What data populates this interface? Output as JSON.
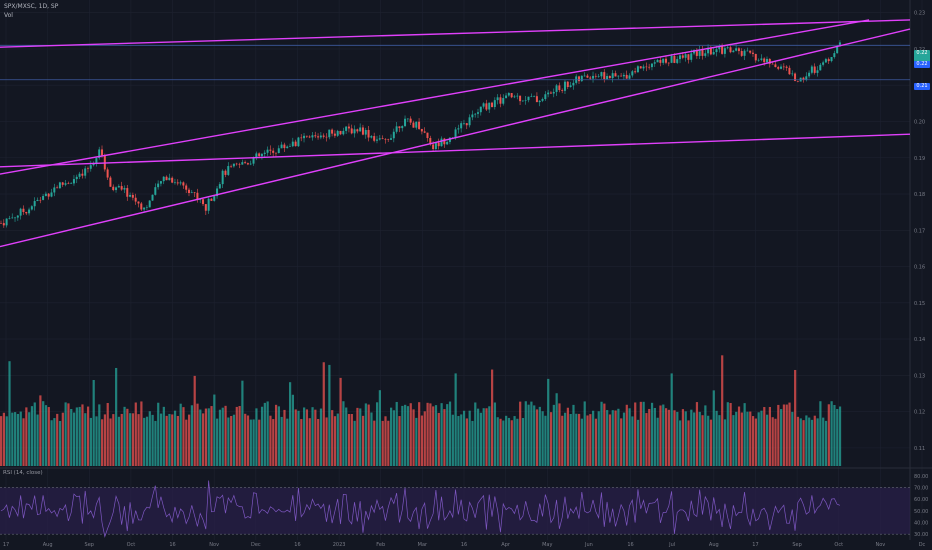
{
  "legend": {
    "symbol": "SPX/MXSC, 1D, SP",
    "volume": "Vol"
  },
  "rsi_label": "RSI (14, close)",
  "colors": {
    "background": "#131722",
    "grid": "#1e2230",
    "up": "#26a69a",
    "down": "#ef5350",
    "trendline": "#e040fb",
    "hline": "#3d5a9e",
    "rsi_line": "#7e57c2",
    "rsi_band": "#2a1f4a"
  },
  "chart_data": {
    "type": "candlestick",
    "price_axis": {
      "labels": [
        "0.23",
        "0.22",
        "0.21",
        "0.20",
        "0.19",
        "0.18",
        "0.17",
        "0.16",
        "0.15",
        "0.14",
        "0.13",
        "0.12",
        "0.11"
      ],
      "range": [
        0.105,
        0.2335
      ]
    },
    "rsi_axis": {
      "labels": [
        "80.00",
        "70.00",
        "60.00",
        "50.00",
        "40.00",
        "30.00"
      ],
      "range": [
        25,
        85
      ],
      "levels": [
        70,
        30
      ]
    },
    "x_axis_labels": [
      "17",
      "Aug",
      "Sep",
      "Oct",
      "16",
      "Nov",
      "Dec",
      "16",
      "2023",
      "Feb",
      "Mar",
      "16",
      "Apr",
      "May",
      "Jun",
      "16",
      "Jul",
      "Aug",
      "17",
      "Sep",
      "Oct",
      "Nov",
      "Dc"
    ],
    "price_tags": {
      "current": "0.22",
      "level_1": "0.22",
      "level_2": "0.21"
    },
    "horizontal_levels": [
      0.221,
      0.2115
    ],
    "trendlines": [
      {
        "x0": 0,
        "y0": 0.2205,
        "x1": 1.0,
        "y1": 0.228
      },
      {
        "x0": 0,
        "y0": 0.1875,
        "x1": 1.0,
        "y1": 0.1965
      },
      {
        "x0": 0,
        "y0": 0.1655,
        "x1": 1.0,
        "y1": 0.2255
      },
      {
        "x0": 0,
        "y0": 0.1855,
        "x1": 0.955,
        "y1": 0.228
      }
    ],
    "price_path": [
      [
        0.0,
        0.172
      ],
      [
        0.03,
        0.176
      ],
      [
        0.06,
        0.182
      ],
      [
        0.09,
        0.185
      ],
      [
        0.11,
        0.192
      ],
      [
        0.118,
        0.183
      ],
      [
        0.14,
        0.18
      ],
      [
        0.158,
        0.176
      ],
      [
        0.18,
        0.185
      ],
      [
        0.205,
        0.182
      ],
      [
        0.225,
        0.176
      ],
      [
        0.245,
        0.186
      ],
      [
        0.28,
        0.19
      ],
      [
        0.32,
        0.194
      ],
      [
        0.36,
        0.197
      ],
      [
        0.395,
        0.198
      ],
      [
        0.42,
        0.194
      ],
      [
        0.44,
        0.2
      ],
      [
        0.46,
        0.199
      ],
      [
        0.475,
        0.193
      ],
      [
        0.5,
        0.197
      ],
      [
        0.53,
        0.204
      ],
      [
        0.56,
        0.207
      ],
      [
        0.59,
        0.206
      ],
      [
        0.62,
        0.21
      ],
      [
        0.65,
        0.213
      ],
      [
        0.68,
        0.212
      ],
      [
        0.71,
        0.216
      ],
      [
        0.74,
        0.217
      ],
      [
        0.77,
        0.219
      ],
      [
        0.8,
        0.22
      ],
      [
        0.825,
        0.218
      ],
      [
        0.845,
        0.216
      ],
      [
        0.86,
        0.215
      ],
      [
        0.875,
        0.211
      ],
      [
        0.89,
        0.214
      ],
      [
        0.905,
        0.216
      ],
      [
        0.925,
        0.222
      ]
    ]
  }
}
